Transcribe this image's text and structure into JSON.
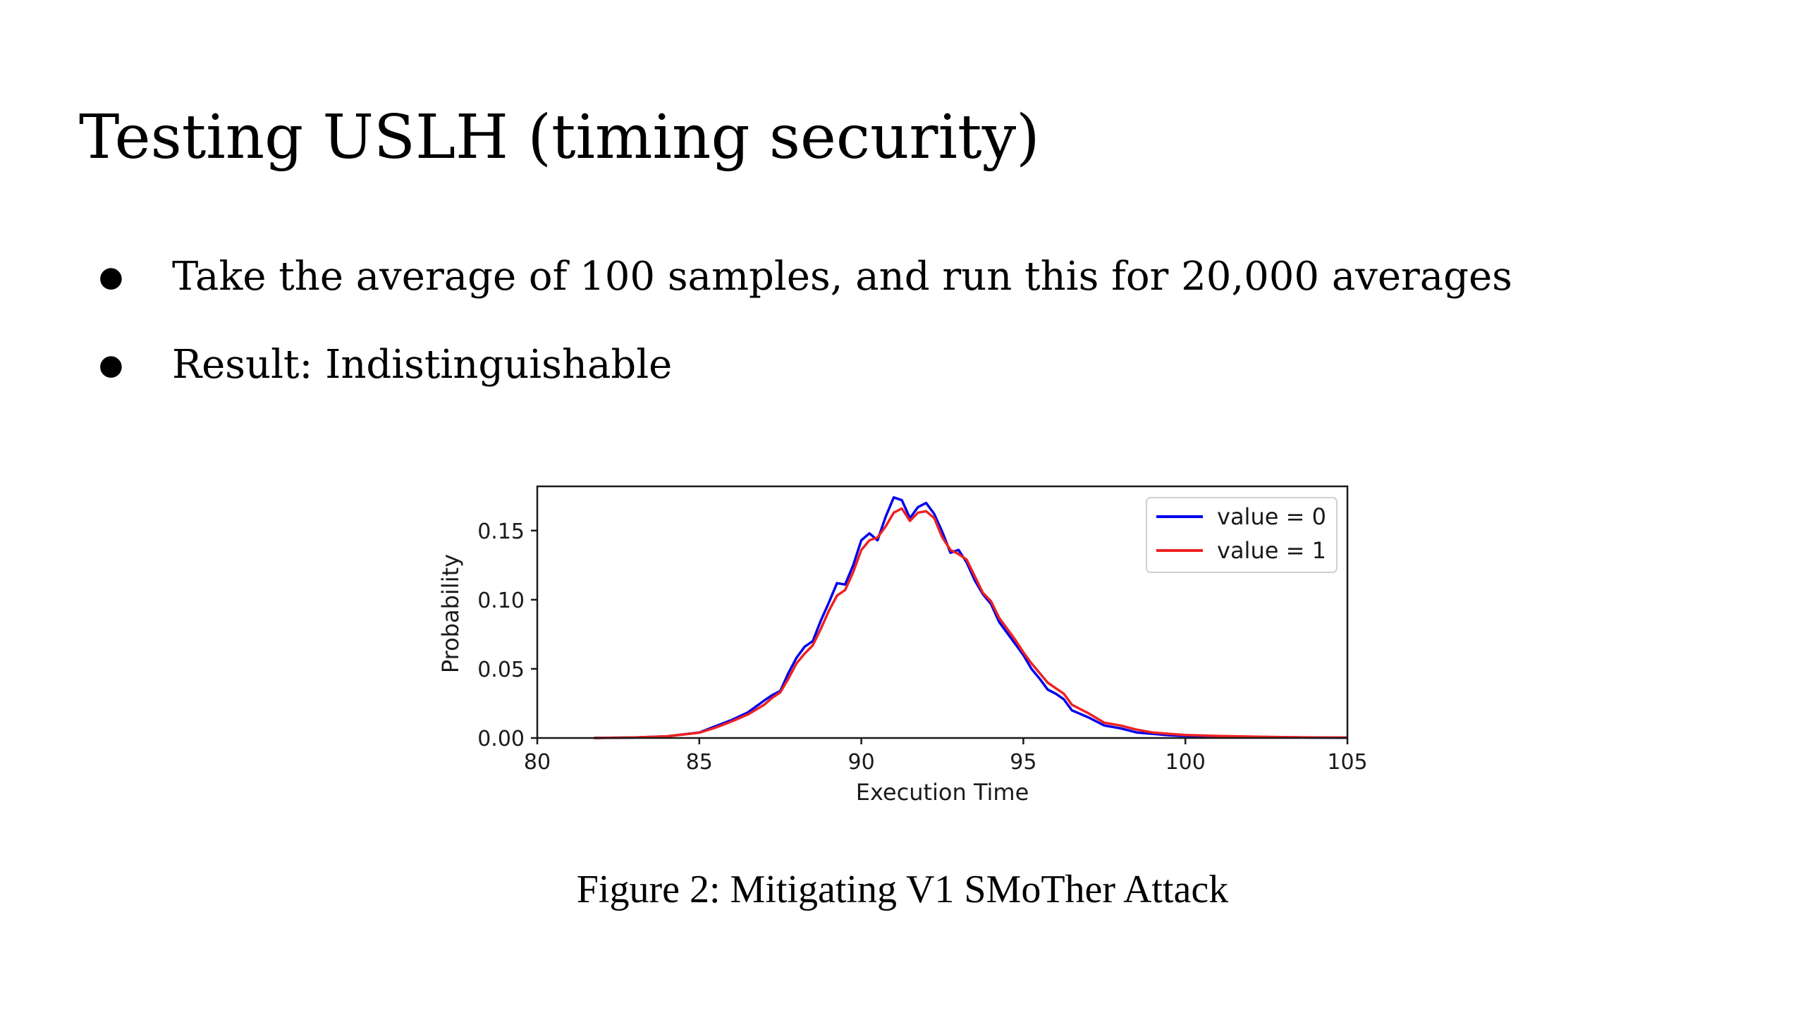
{
  "slide": {
    "title": "Testing USLH (timing security)",
    "bullets": [
      "Take the average of 100 samples, and run this for 20,000 averages",
      "Result: Indistinguishable"
    ],
    "bullet_glyph": "●",
    "caption": "Figure 2: Mitigating V1 SMoTher Attack"
  },
  "chart_data": {
    "type": "line",
    "title": "",
    "xlabel": "Execution Time",
    "ylabel": "Probability",
    "xlim": [
      80,
      105
    ],
    "ylim": [
      0,
      0.182
    ],
    "xticks": [
      80,
      85,
      90,
      95,
      100,
      105
    ],
    "xtick_labels": [
      "80",
      "85",
      "90",
      "95",
      "100",
      "105"
    ],
    "yticks": [
      0.0,
      0.05,
      0.1,
      0.15
    ],
    "ytick_labels": [
      "0.00",
      "0.05",
      "0.10",
      "0.15"
    ],
    "grid": false,
    "legend_position": "top-right",
    "series": [
      {
        "name": "value = 0",
        "color": "#0000ee",
        "x": [
          81.75,
          83,
          84,
          85,
          85.5,
          86,
          86.5,
          87,
          87.25,
          87.5,
          87.75,
          88,
          88.25,
          88.5,
          88.75,
          89,
          89.25,
          89.5,
          89.75,
          90,
          90.25,
          90.5,
          90.75,
          91,
          91.25,
          91.5,
          91.75,
          92,
          92.25,
          92.5,
          92.75,
          93,
          93.25,
          93.5,
          93.75,
          94,
          94.25,
          94.5,
          94.75,
          95,
          95.25,
          95.5,
          95.75,
          96,
          96.25,
          96.5,
          97,
          97.5,
          98,
          98.5,
          99,
          99.5,
          100,
          101,
          102,
          103,
          104,
          105
        ],
        "values": [
          0.0,
          0.0003,
          0.0012,
          0.004,
          0.0085,
          0.013,
          0.0185,
          0.027,
          0.031,
          0.034,
          0.047,
          0.058,
          0.066,
          0.07,
          0.085,
          0.098,
          0.112,
          0.111,
          0.125,
          0.143,
          0.148,
          0.143,
          0.16,
          0.174,
          0.172,
          0.159,
          0.167,
          0.17,
          0.162,
          0.149,
          0.134,
          0.136,
          0.127,
          0.114,
          0.104,
          0.097,
          0.084,
          0.076,
          0.068,
          0.06,
          0.05,
          0.043,
          0.035,
          0.032,
          0.028,
          0.02,
          0.015,
          0.009,
          0.007,
          0.004,
          0.003,
          0.002,
          0.0015,
          0.001,
          0.0008,
          0.0005,
          0.0003,
          0.0002
        ]
      },
      {
        "name": "value = 1",
        "color": "#ee2222",
        "x": [
          81.75,
          83,
          84,
          85,
          85.5,
          86,
          86.5,
          87,
          87.25,
          87.5,
          87.75,
          88,
          88.25,
          88.5,
          88.75,
          89,
          89.25,
          89.5,
          89.75,
          90,
          90.25,
          90.5,
          90.75,
          91,
          91.25,
          91.5,
          91.75,
          92,
          92.25,
          92.5,
          92.75,
          93,
          93.25,
          93.5,
          93.75,
          94,
          94.25,
          94.5,
          94.75,
          95,
          95.25,
          95.5,
          95.75,
          96,
          96.25,
          96.5,
          97,
          97.5,
          98,
          98.5,
          99,
          99.5,
          100,
          101,
          102,
          103,
          104,
          105
        ],
        "values": [
          0.0,
          0.0004,
          0.0012,
          0.0038,
          0.0075,
          0.012,
          0.017,
          0.024,
          0.029,
          0.033,
          0.043,
          0.054,
          0.061,
          0.067,
          0.079,
          0.092,
          0.103,
          0.107,
          0.12,
          0.136,
          0.143,
          0.145,
          0.153,
          0.163,
          0.166,
          0.157,
          0.163,
          0.164,
          0.159,
          0.145,
          0.136,
          0.133,
          0.129,
          0.117,
          0.105,
          0.099,
          0.087,
          0.079,
          0.071,
          0.062,
          0.054,
          0.047,
          0.04,
          0.036,
          0.032,
          0.024,
          0.018,
          0.011,
          0.009,
          0.006,
          0.004,
          0.003,
          0.0022,
          0.0015,
          0.001,
          0.0006,
          0.0004,
          0.0003
        ]
      }
    ]
  }
}
